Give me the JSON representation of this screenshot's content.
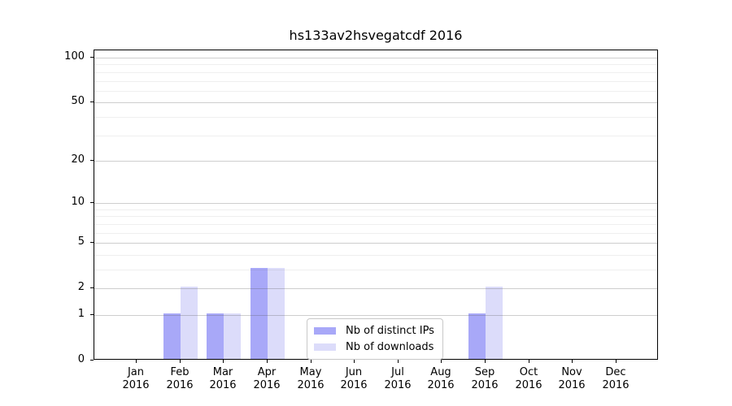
{
  "chart_data": {
    "type": "bar",
    "title": "hs133av2hsvegatcdf 2016",
    "categories": [
      "Jan",
      "Feb",
      "Mar",
      "Apr",
      "May",
      "Jun",
      "Jul",
      "Aug",
      "Sep",
      "Oct",
      "Nov",
      "Dec"
    ],
    "category_year": "2016",
    "series": [
      {
        "name": "Nb of distinct IPs",
        "color": "#a8a8f8",
        "values": [
          0,
          1,
          1,
          3,
          0,
          0,
          0,
          0,
          1,
          0,
          0,
          0
        ]
      },
      {
        "name": "Nb of downloads",
        "color": "#dcdcfa",
        "values": [
          0,
          2,
          1,
          3,
          0,
          0,
          0,
          0,
          2,
          0,
          0,
          0
        ]
      }
    ],
    "yticks": [
      0,
      1,
      2,
      5,
      10,
      20,
      50,
      100
    ],
    "minor_yticks": [
      3,
      4,
      6,
      7,
      8,
      9,
      30,
      40,
      60,
      70,
      80,
      90
    ],
    "scale": "log1p",
    "ylim": [
      0,
      112
    ],
    "xlabel": "",
    "ylabel": "",
    "grid": "both",
    "legend_position": "lower center"
  }
}
